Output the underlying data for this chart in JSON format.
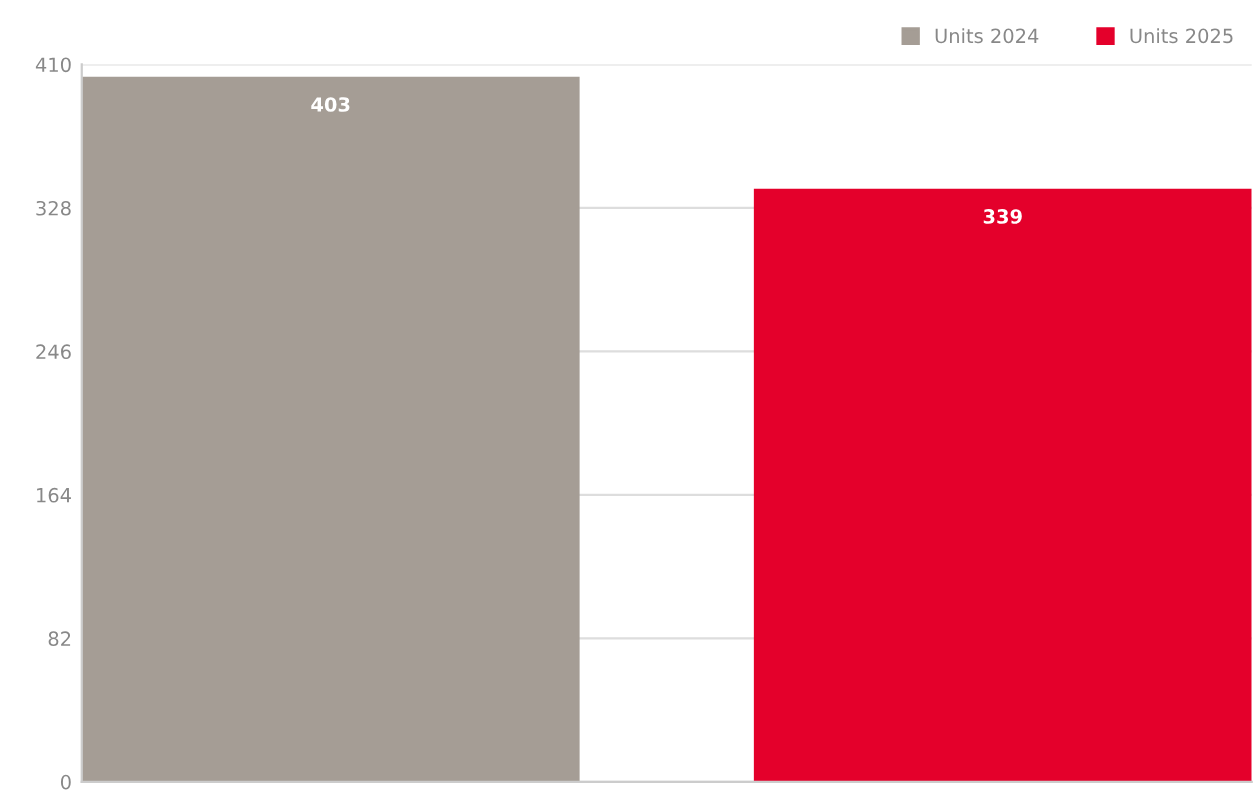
{
  "chart_data": {
    "type": "bar",
    "categories": [
      null
    ],
    "series": [
      {
        "name": "Units 2024",
        "color": "#a59d95",
        "values": [
          403
        ]
      },
      {
        "name": "Units 2025",
        "color": "#e4002b",
        "values": [
          339
        ]
      }
    ],
    "ylim": [
      0,
      410
    ],
    "yticks": [
      0,
      82,
      164,
      246,
      328,
      410
    ],
    "grid": "y",
    "legend": "top right",
    "data_labels": true
  }
}
